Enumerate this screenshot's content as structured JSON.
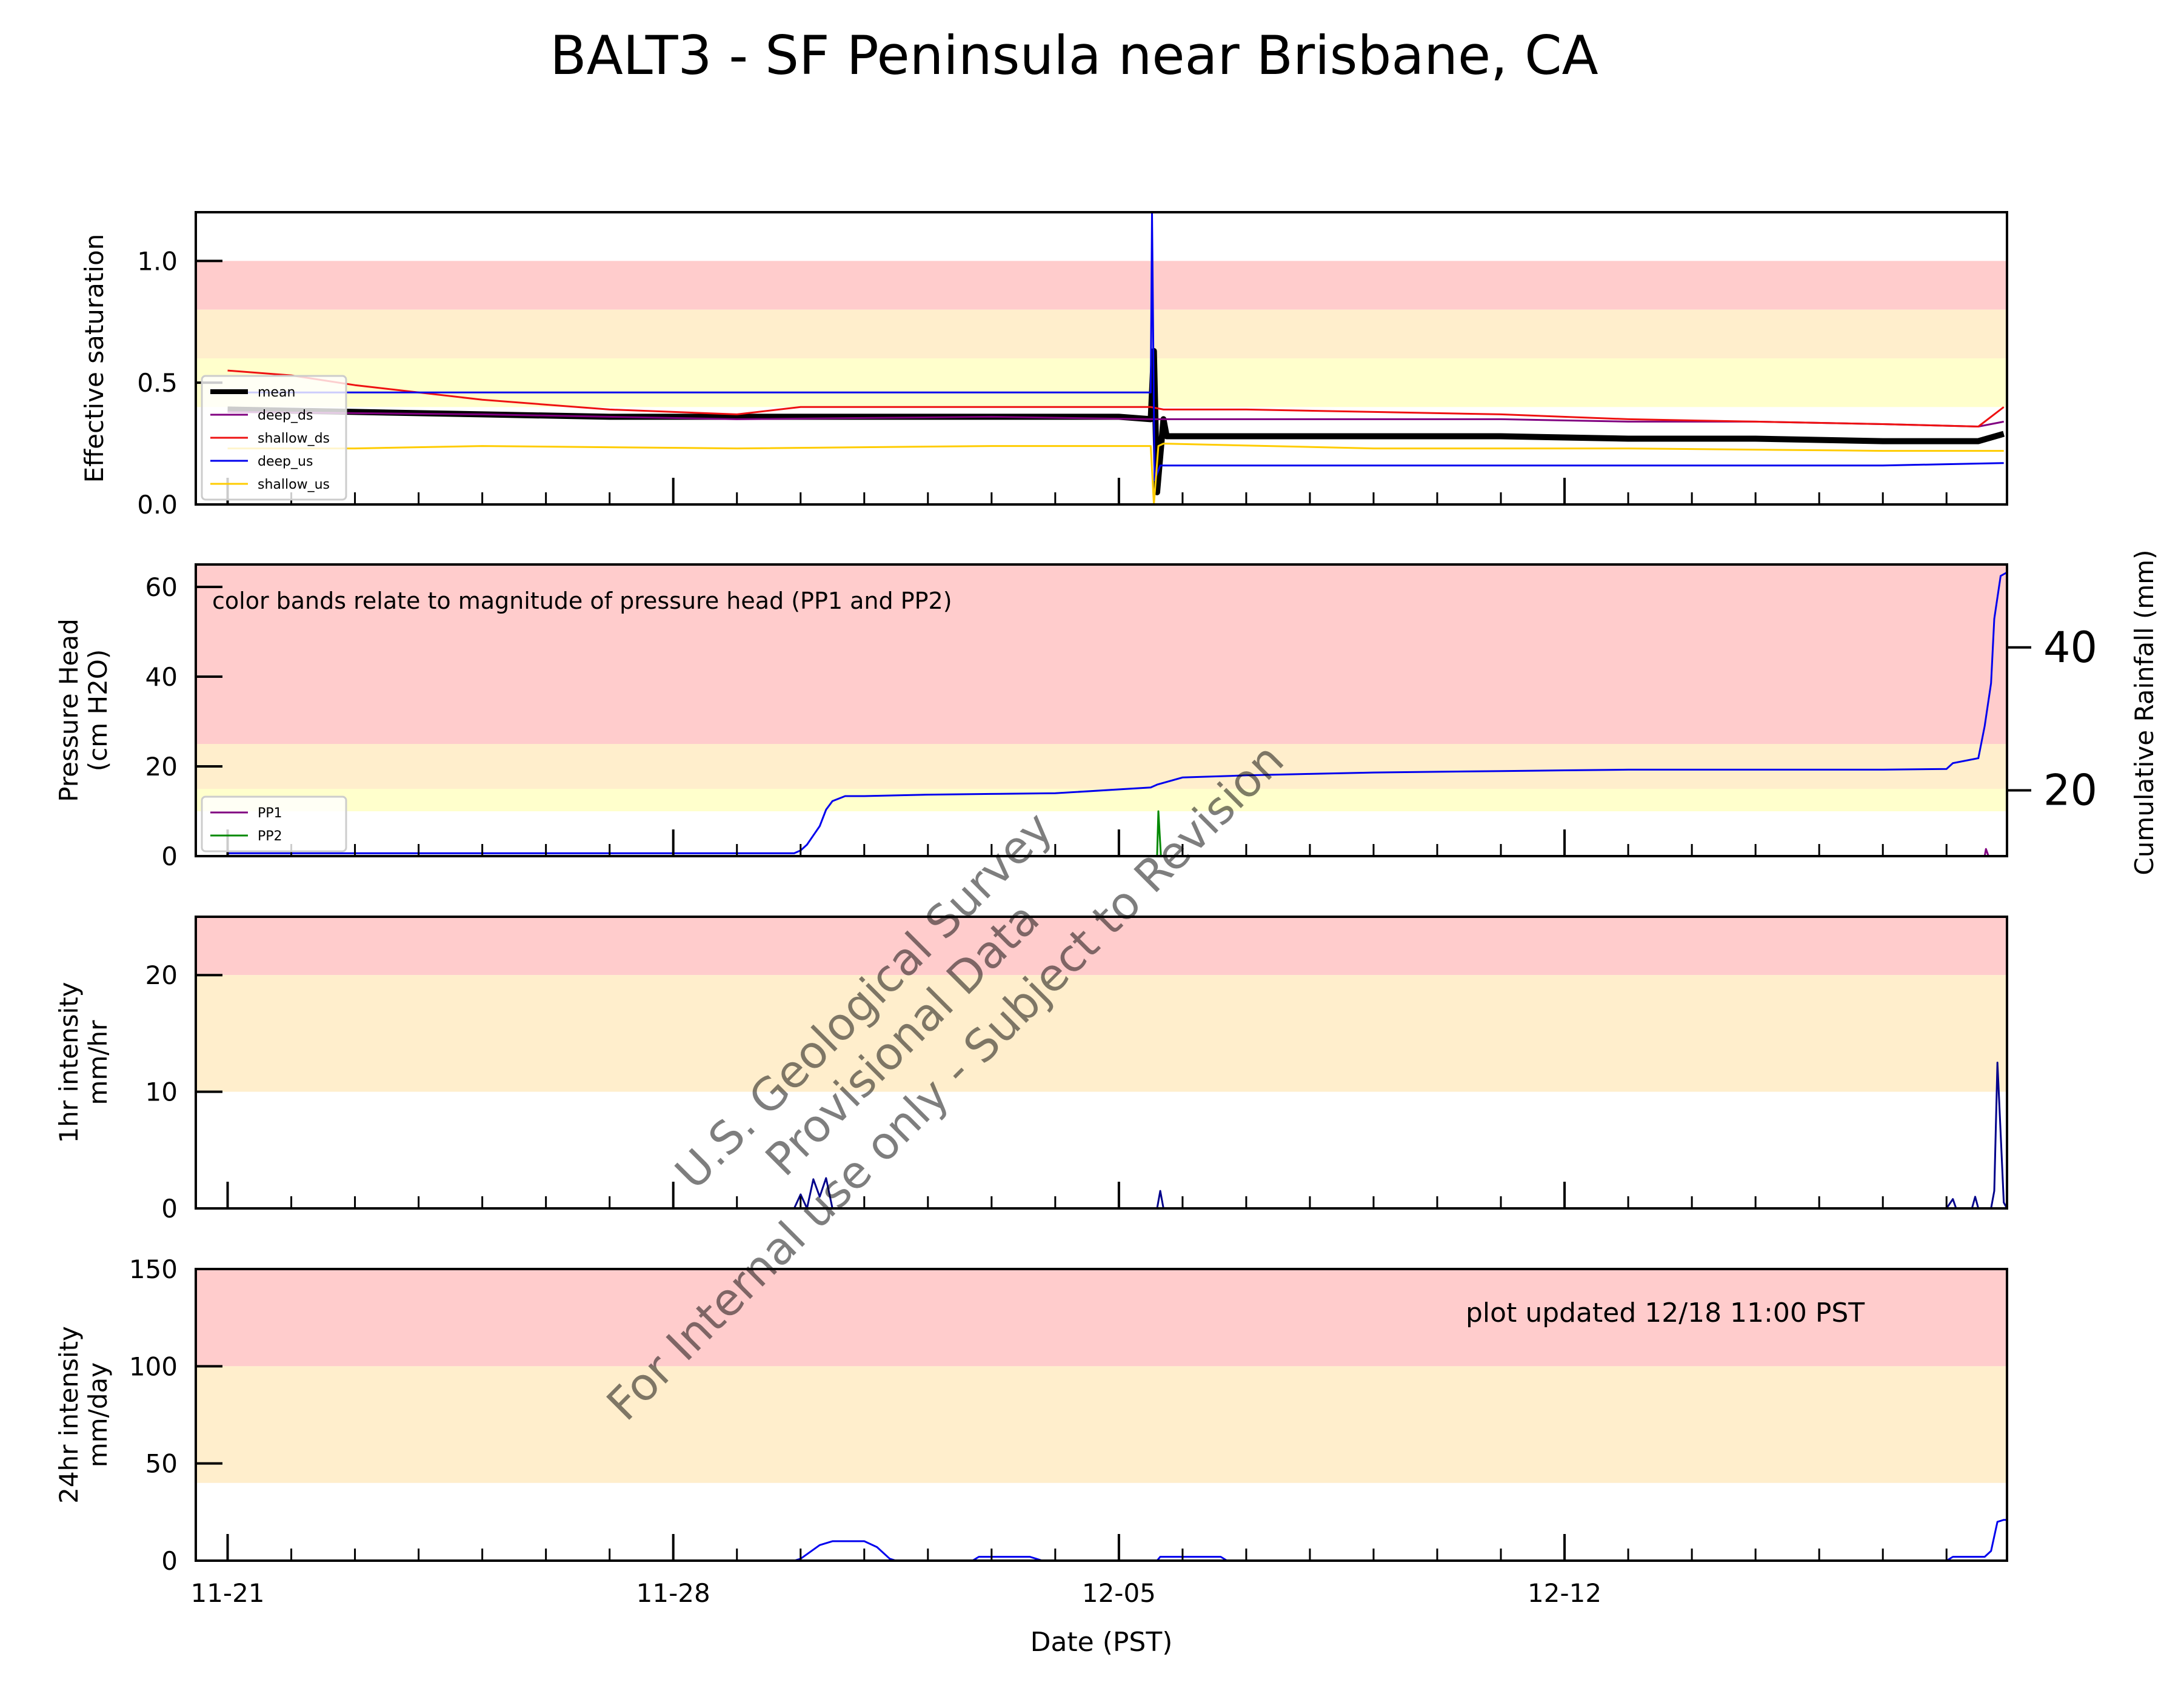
{
  "title": "BALT3 - SF Peninsula near Brisbane, CA",
  "xlabel": "Date (PST)",
  "x_ticks": [
    "11-21",
    "11-28",
    "12-05",
    "12-12"
  ],
  "updated_note": "plot updated 12/18 11:00  PST",
  "watermark": [
    "U.S. Geological Survey",
    "Provisional Data",
    "For Internal use only - Subject to Revision"
  ],
  "colors": {
    "red_band": "#ffcccc",
    "orange_band": "#ffeecc",
    "yellow_band": "#ffffcc"
  },
  "chart_data": [
    {
      "type": "line",
      "id": "saturation",
      "ylabel": "Effective saturation",
      "ylim": [
        0,
        1.2
      ],
      "yticks": [
        "0.0",
        "0.5",
        "1.0"
      ],
      "ytick_values": [
        0,
        0.5,
        1.0
      ],
      "bands": [
        {
          "from": 0.8,
          "to": 1.0,
          "color": "#ffcccc"
        },
        {
          "from": 0.6,
          "to": 0.8,
          "color": "#ffeecc"
        },
        {
          "from": 0.4,
          "to": 0.6,
          "color": "#ffffcc"
        }
      ],
      "legend_position": "lower-left",
      "series": [
        {
          "name": "mean",
          "color": "#000000",
          "width": 10,
          "points": [
            [
              0,
              0.39
            ],
            [
              2,
              0.38
            ],
            [
              4,
              0.37
            ],
            [
              6,
              0.36
            ],
            [
              8,
              0.36
            ],
            [
              10,
              0.36
            ],
            [
              12,
              0.36
            ],
            [
              14,
              0.36
            ],
            [
              14.5,
              0.35
            ],
            [
              14.55,
              0.63
            ],
            [
              14.6,
              0.05
            ],
            [
              14.7,
              0.35
            ],
            [
              14.75,
              0.28
            ],
            [
              16,
              0.28
            ],
            [
              18,
              0.28
            ],
            [
              20,
              0.28
            ],
            [
              22,
              0.27
            ],
            [
              24,
              0.27
            ],
            [
              26,
              0.26
            ],
            [
              27.5,
              0.26
            ],
            [
              27.9,
              0.29
            ]
          ]
        },
        {
          "name": "deep_ds",
          "color": "#800080",
          "width": 3,
          "points": [
            [
              0,
              0.38
            ],
            [
              4,
              0.37
            ],
            [
              8,
              0.35
            ],
            [
              12,
              0.36
            ],
            [
              14.5,
              0.35
            ],
            [
              14.7,
              0.35
            ],
            [
              16,
              0.35
            ],
            [
              18,
              0.35
            ],
            [
              20,
              0.35
            ],
            [
              22,
              0.34
            ],
            [
              24,
              0.34
            ],
            [
              26,
              0.33
            ],
            [
              27.5,
              0.32
            ],
            [
              27.9,
              0.34
            ]
          ]
        },
        {
          "name": "shallow_ds",
          "color": "#ee1111",
          "width": 3,
          "points": [
            [
              0,
              0.55
            ],
            [
              1,
              0.53
            ],
            [
              2,
              0.49
            ],
            [
              3,
              0.46
            ],
            [
              4,
              0.43
            ],
            [
              6,
              0.39
            ],
            [
              8,
              0.37
            ],
            [
              9,
              0.4
            ],
            [
              10,
              0.4
            ],
            [
              12,
              0.4
            ],
            [
              14.5,
              0.4
            ],
            [
              14.7,
              0.39
            ],
            [
              16,
              0.39
            ],
            [
              18,
              0.38
            ],
            [
              20,
              0.37
            ],
            [
              22,
              0.35
            ],
            [
              24,
              0.34
            ],
            [
              26,
              0.33
            ],
            [
              27.5,
              0.32
            ],
            [
              27.9,
              0.4
            ]
          ]
        },
        {
          "name": "deep_us",
          "color": "#0000ee",
          "width": 3,
          "points": [
            [
              0,
              0.46
            ],
            [
              14.5,
              0.46
            ],
            [
              14.52,
              1.2
            ],
            [
              14.56,
              0.1
            ],
            [
              14.65,
              0.16
            ],
            [
              16,
              0.16
            ],
            [
              20,
              0.16
            ],
            [
              24,
              0.16
            ],
            [
              26,
              0.16
            ],
            [
              27.9,
              0.17
            ]
          ]
        },
        {
          "name": "shallow_us",
          "color": "#ffcc00",
          "width": 3,
          "points": [
            [
              0,
              0.23
            ],
            [
              2,
              0.23
            ],
            [
              4,
              0.24
            ],
            [
              8,
              0.23
            ],
            [
              12,
              0.24
            ],
            [
              14.5,
              0.24
            ],
            [
              14.55,
              0.0
            ],
            [
              14.62,
              0.24
            ],
            [
              14.7,
              0.25
            ],
            [
              18,
              0.23
            ],
            [
              22,
              0.23
            ],
            [
              26,
              0.22
            ],
            [
              27.9,
              0.22
            ]
          ]
        }
      ]
    },
    {
      "type": "line",
      "id": "pressure",
      "ylabel": "Pressure Head\n(cm H2O)",
      "ylim": [
        0,
        65
      ],
      "yticks": [
        "0",
        "20",
        "40",
        "60"
      ],
      "ytick_values": [
        0,
        20,
        40,
        60
      ],
      "y2label": "Cumulative Rainfall (mm)",
      "y2lim": [
        10.8,
        51.6
      ],
      "y2ticks": [
        "20",
        "40"
      ],
      "y2tick_values": [
        20,
        40
      ],
      "annotation": "color bands relate to magnitude of pressure head (PP1 and PP2)",
      "bands": [
        {
          "from": 25,
          "to": 65,
          "color": "#ffcccc"
        },
        {
          "from": 15,
          "to": 25,
          "color": "#ffeecc"
        },
        {
          "from": 10,
          "to": 15,
          "color": "#ffffcc"
        }
      ],
      "legend_position": "lower-left",
      "series": [
        {
          "name": "PP1",
          "color": "#800080",
          "width": 3,
          "points": [
            [
              27.6,
              0
            ],
            [
              27.62,
              1.6
            ],
            [
              27.66,
              0
            ]
          ]
        },
        {
          "name": "PP2",
          "color": "#008800",
          "width": 3,
          "points": [
            [
              14.6,
              0
            ],
            [
              14.62,
              10
            ],
            [
              14.66,
              0
            ]
          ]
        }
      ],
      "rainfall_series": {
        "name": "Cumulative Rainfall",
        "color": "#0000ee",
        "points": [
          [
            0,
            11.2
          ],
          [
            8.9,
            11.2
          ],
          [
            9.0,
            11.6
          ],
          [
            9.1,
            12.4
          ],
          [
            9.2,
            13.7
          ],
          [
            9.3,
            15.0
          ],
          [
            9.4,
            17.3
          ],
          [
            9.5,
            18.5
          ],
          [
            9.7,
            19.2
          ],
          [
            10,
            19.2
          ],
          [
            11,
            19.4
          ],
          [
            12,
            19.5
          ],
          [
            13,
            19.6
          ],
          [
            14.5,
            20.4
          ],
          [
            14.6,
            20.8
          ],
          [
            15,
            21.8
          ],
          [
            16,
            22.1
          ],
          [
            17,
            22.3
          ],
          [
            18,
            22.5
          ],
          [
            19,
            22.6
          ],
          [
            20,
            22.7
          ],
          [
            21,
            22.8
          ],
          [
            22,
            22.9
          ],
          [
            23,
            22.9
          ],
          [
            24,
            22.9
          ],
          [
            25,
            22.9
          ],
          [
            26,
            22.9
          ],
          [
            27,
            23.0
          ],
          [
            27.1,
            23.8
          ],
          [
            27.5,
            24.5
          ],
          [
            27.6,
            29.0
          ],
          [
            27.7,
            35.0
          ],
          [
            27.75,
            44.0
          ],
          [
            27.85,
            50.0
          ],
          [
            27.95,
            50.5
          ]
        ]
      }
    },
    {
      "type": "line",
      "id": "hourly",
      "ylabel": "1hr intensity\nmm/hr",
      "ylim": [
        0,
        25
      ],
      "yticks": [
        "0",
        "10",
        "20"
      ],
      "ytick_values": [
        0,
        10,
        20
      ],
      "bands": [
        {
          "from": 20,
          "to": 25,
          "color": "#ffcccc"
        },
        {
          "from": 10,
          "to": 20,
          "color": "#ffeecc"
        }
      ],
      "series": [
        {
          "name": "1hr intensity",
          "color": "#00008b",
          "width": 3,
          "points": [
            [
              0,
              0
            ],
            [
              8.9,
              0
            ],
            [
              9.0,
              1.2
            ],
            [
              9.1,
              0
            ],
            [
              9.2,
              2.5
            ],
            [
              9.3,
              1.0
            ],
            [
              9.4,
              2.6
            ],
            [
              9.5,
              0
            ],
            [
              14.6,
              0
            ],
            [
              14.65,
              1.5
            ],
            [
              14.7,
              0
            ],
            [
              27.0,
              0
            ],
            [
              27.1,
              0.8
            ],
            [
              27.15,
              0
            ],
            [
              27.4,
              0
            ],
            [
              27.45,
              1.0
            ],
            [
              27.5,
              0
            ],
            [
              27.7,
              0
            ],
            [
              27.75,
              1.5
            ],
            [
              27.8,
              12.5
            ],
            [
              27.9,
              0.5
            ],
            [
              27.95,
              0
            ]
          ]
        }
      ]
    },
    {
      "type": "line",
      "id": "daily",
      "ylabel": "24hr intensity\nmm/day",
      "ylim": [
        0,
        150
      ],
      "yticks": [
        "0",
        "50",
        "100",
        "150"
      ],
      "ytick_values": [
        0,
        50,
        100,
        150
      ],
      "bands": [
        {
          "from": 100,
          "to": 150,
          "color": "#ffcccc"
        },
        {
          "from": 40,
          "to": 100,
          "color": "#ffeecc"
        }
      ],
      "series": [
        {
          "name": "24hr intensity",
          "color": "#0000ee",
          "width": 3,
          "points": [
            [
              0,
              0
            ],
            [
              8.9,
              0
            ],
            [
              9.0,
              1
            ],
            [
              9.3,
              8
            ],
            [
              9.5,
              10
            ],
            [
              10,
              10
            ],
            [
              10.2,
              7
            ],
            [
              10.4,
              1
            ],
            [
              10.5,
              0
            ],
            [
              11.7,
              0
            ],
            [
              11.8,
              2
            ],
            [
              12.6,
              2
            ],
            [
              12.8,
              0
            ],
            [
              14.6,
              0
            ],
            [
              14.65,
              2
            ],
            [
              15.6,
              2
            ],
            [
              15.7,
              0
            ],
            [
              27.0,
              0
            ],
            [
              27.1,
              2
            ],
            [
              27.6,
              2
            ],
            [
              27.7,
              5
            ],
            [
              27.8,
              20
            ],
            [
              27.9,
              21
            ],
            [
              27.95,
              21
            ]
          ]
        }
      ]
    }
  ]
}
